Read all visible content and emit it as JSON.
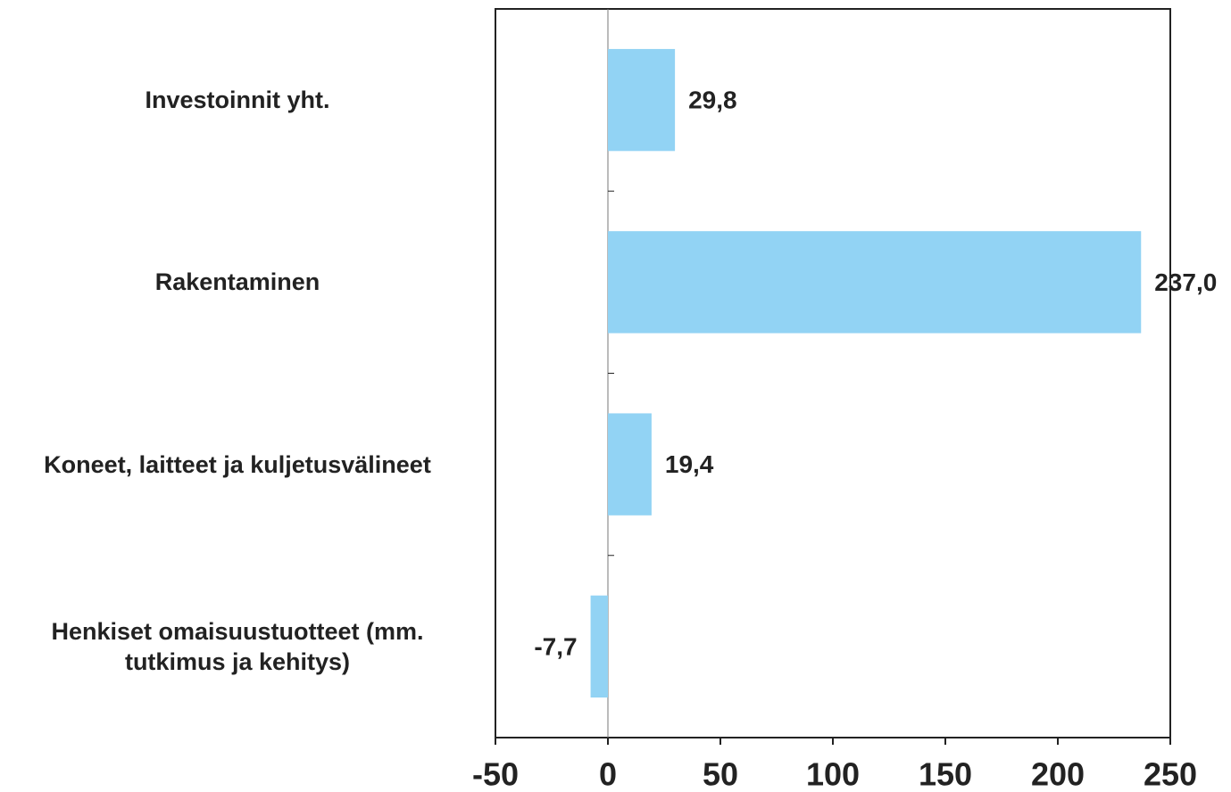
{
  "chart_data": {
    "type": "bar",
    "orientation": "horizontal",
    "categories": [
      "Investoinnit yht.",
      "Rakentaminen",
      "Koneet, laitteet ja kuljetusvälineet",
      "Henkiset omaisuustuotteet (mm. tutkimus ja kehitys)"
    ],
    "values": [
      29.8,
      237.0,
      19.4,
      -7.7
    ],
    "value_labels": [
      "29,8",
      "237,0",
      "19,4",
      "-7,7"
    ],
    "color": "#92d3f4",
    "xlim": [
      -50,
      250
    ],
    "xticks": [
      -50,
      0,
      50,
      100,
      150,
      200,
      250
    ]
  }
}
